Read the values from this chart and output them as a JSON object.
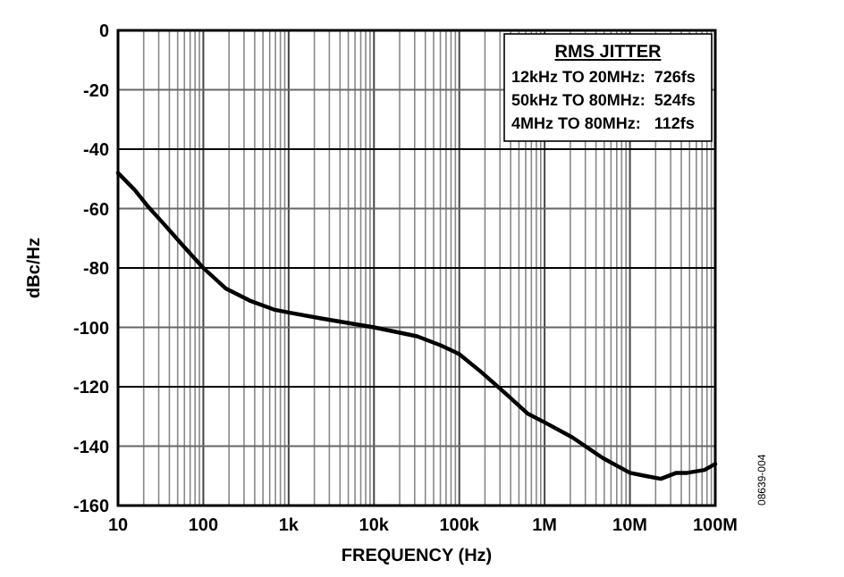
{
  "chart_data": {
    "type": "line",
    "xlabel": "FREQUENCY (Hz)",
    "ylabel": "dBc/Hz",
    "log": "x",
    "xlim": [
      10,
      100000000
    ],
    "xticks": [
      {
        "value": 10,
        "label": "10"
      },
      {
        "value": 100,
        "label": "100"
      },
      {
        "value": 1000,
        "label": "1k"
      },
      {
        "value": 10000,
        "label": "10k"
      },
      {
        "value": 100000,
        "label": "100k"
      },
      {
        "value": 1000000,
        "label": "1M"
      },
      {
        "value": 10000000,
        "label": "10M"
      },
      {
        "value": 100000000,
        "label": "100M"
      }
    ],
    "ylim": [
      -160,
      0
    ],
    "yticks": [
      -160,
      -140,
      -120,
      -100,
      -80,
      -60,
      -40,
      -20,
      0
    ],
    "grid": true,
    "series": [
      {
        "color": "#000000",
        "x": [
          10,
          16,
          22,
          34,
          60,
          100,
          185,
          350,
          670,
          1000,
          2400,
          10000,
          32000,
          60000,
          100000,
          180000,
          340000,
          630000,
          1000000,
          2100000,
          4800000,
          10000000,
          15000000,
          23000000,
          35000000,
          47000000,
          75000000,
          100000000
        ],
        "values": [
          -48,
          -54,
          -59,
          -65,
          -73,
          -80,
          -87,
          -91,
          -94,
          -95,
          -97,
          -100,
          -103,
          -106,
          -109,
          -115,
          -122,
          -129,
          -132,
          -137,
          -144,
          -149,
          -150,
          -151,
          -149,
          -149,
          -148,
          -146
        ]
      }
    ],
    "annotations": [
      "RMS JITTER",
      "12kHz TO 20MHz:  726fs",
      "50kHz TO 80MHz:  524fs",
      "4MHz TO 80MHz:   112fs",
      "08639-004"
    ]
  }
}
